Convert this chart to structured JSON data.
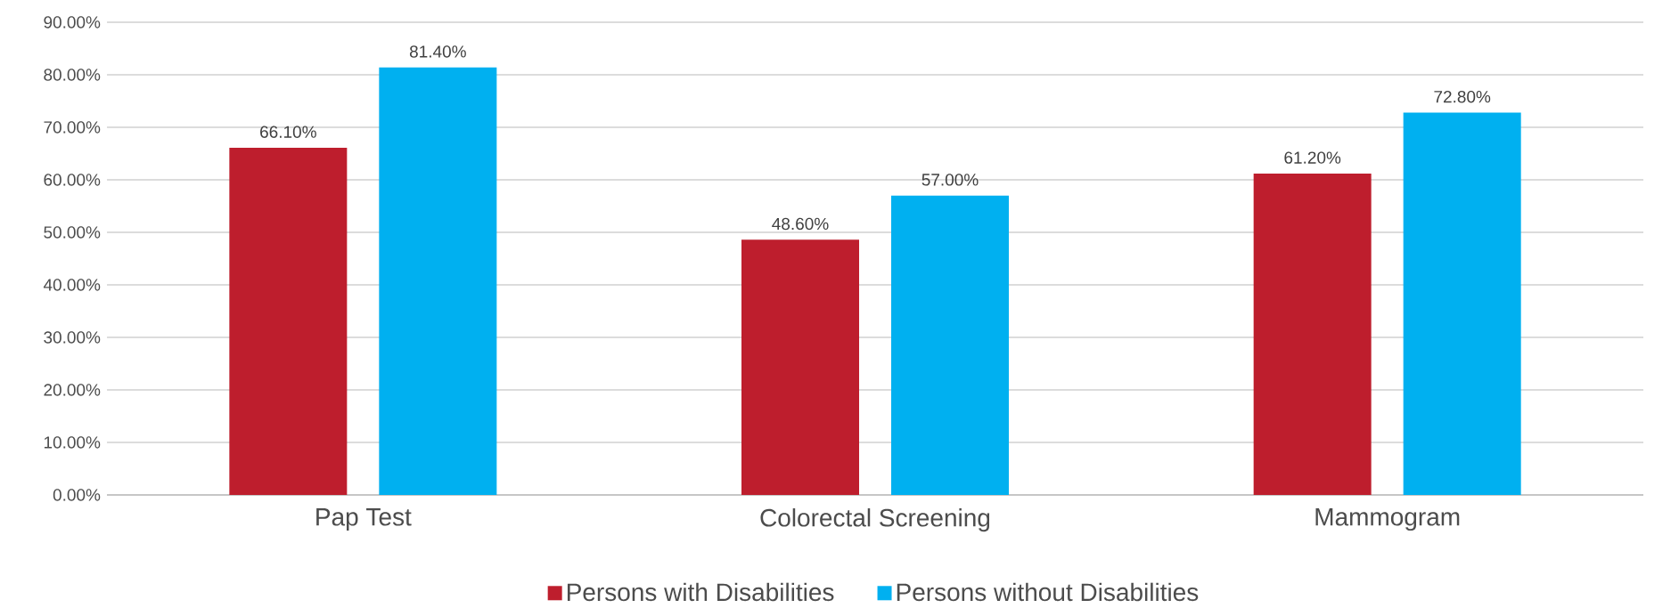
{
  "chart_data": {
    "type": "bar",
    "categories": [
      "Pap Test",
      "Colorectal Screening",
      "Mammogram"
    ],
    "series": [
      {
        "name": "Persons with Disabilities",
        "color": "#be1e2d",
        "values": [
          66.1,
          48.6,
          61.2
        ],
        "value_labels": [
          "66.10%",
          "48.60%",
          "61.20%"
        ]
      },
      {
        "name": "Persons without Disabilities",
        "color": "#00b0f0",
        "values": [
          81.4,
          57.0,
          72.8
        ],
        "value_labels": [
          "81.40%",
          "57.00%",
          "72.80%"
        ]
      }
    ],
    "ylim": [
      0,
      90
    ],
    "yticks": [
      {
        "value": 0,
        "label": "0.00%"
      },
      {
        "value": 10,
        "label": "10.00%"
      },
      {
        "value": 20,
        "label": "20.00%"
      },
      {
        "value": 30,
        "label": "30.00%"
      },
      {
        "value": 40,
        "label": "40.00%"
      },
      {
        "value": 50,
        "label": "50.00%"
      },
      {
        "value": 60,
        "label": "60.00%"
      },
      {
        "value": 70,
        "label": "70.00%"
      },
      {
        "value": 80,
        "label": "80.00%"
      },
      {
        "value": 90,
        "label": "90.00%"
      }
    ],
    "grid": "y",
    "legend": "bottom"
  }
}
